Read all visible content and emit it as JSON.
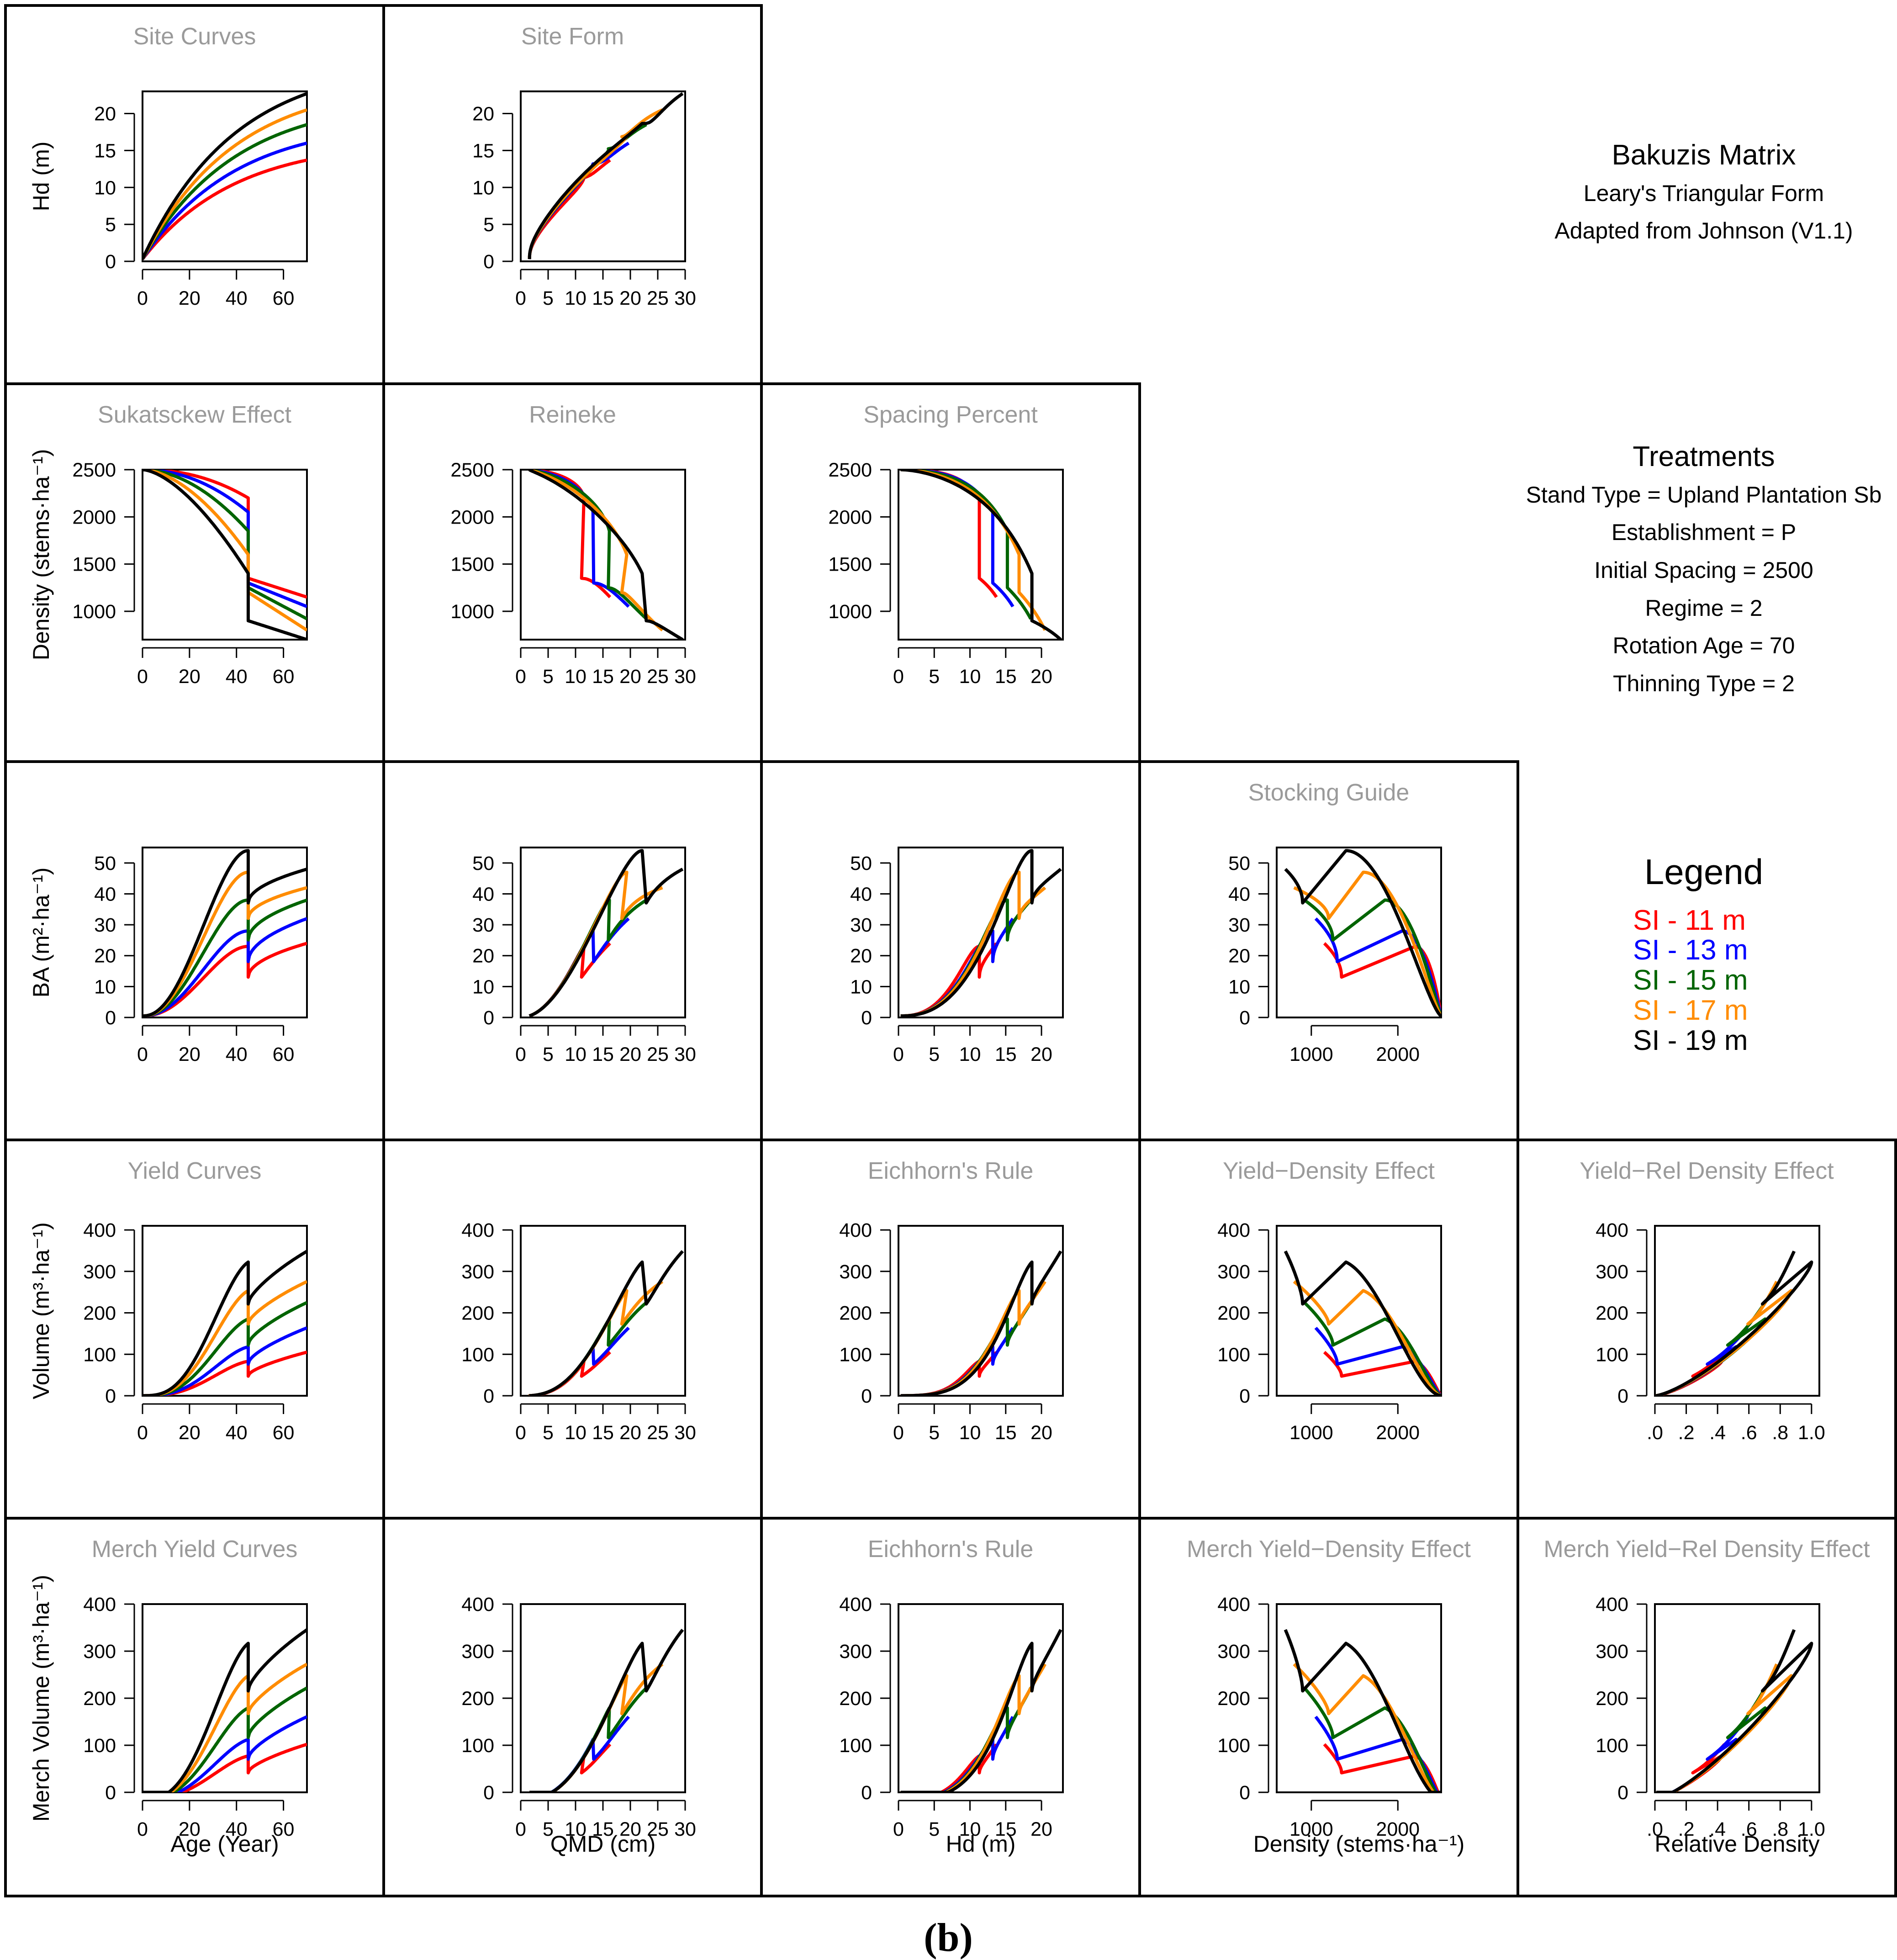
{
  "header": {
    "title": "Bakuzis Matrix",
    "subtitle1": "Leary's Triangular Form",
    "subtitle2": "Adapted from Johnson (V1.1)"
  },
  "treatments": {
    "heading": "Treatments",
    "lines": [
      "Stand Type = Upland Plantation Sb",
      "Establishment = P",
      "Initial Spacing = 2500",
      "Regime = 2",
      "Rotation Age = 70",
      "Thinning Type = 2"
    ]
  },
  "legend": {
    "title": "Legend",
    "items": [
      {
        "label": "SI -  11 m",
        "color": "#ff0000"
      },
      {
        "label": "SI -  13 m",
        "color": "#0000ff"
      },
      {
        "label": "SI -  15 m",
        "color": "#006400"
      },
      {
        "label": "SI -  17 m",
        "color": "#ff8c00"
      },
      {
        "label": "SI -  19 m",
        "color": "#000000"
      }
    ]
  },
  "caption": "(b)",
  "chart_data": [
    {
      "type": "line",
      "title": "Site Curves",
      "row": 0,
      "col": 0,
      "xkind": "age",
      "ykind": "hd",
      "xlim": [
        0,
        70
      ],
      "ylim": [
        0,
        23
      ],
      "xticks": [
        0,
        20,
        40,
        60
      ],
      "yticks": [
        0,
        5,
        10,
        15,
        20
      ],
      "ylabel": "Hd (m)",
      "xlabel": ""
    },
    {
      "type": "line",
      "title": "Site Form",
      "row": 0,
      "col": 1,
      "xkind": "qmd",
      "ykind": "hd",
      "xlim": [
        0,
        30
      ],
      "ylim": [
        0,
        23
      ],
      "xticks": [
        0,
        5,
        10,
        15,
        20,
        25,
        30
      ],
      "yticks": [
        0,
        5,
        10,
        15,
        20
      ],
      "ylabel": "",
      "xlabel": ""
    },
    {
      "type": "line",
      "title": "Sukatsckew Effect",
      "row": 1,
      "col": 0,
      "xkind": "age",
      "ykind": "dens",
      "xlim": [
        0,
        70
      ],
      "ylim": [
        700,
        2500
      ],
      "xticks": [
        0,
        20,
        40,
        60
      ],
      "yticks": [
        1000,
        1500,
        2000,
        2500
      ],
      "ylabel": "Density (stems·ha⁻¹)",
      "xlabel": ""
    },
    {
      "type": "line",
      "title": "Reineke",
      "row": 1,
      "col": 1,
      "xkind": "qmd",
      "ykind": "dens",
      "xlim": [
        0,
        30
      ],
      "ylim": [
        700,
        2500
      ],
      "xticks": [
        0,
        5,
        10,
        15,
        20,
        25,
        30
      ],
      "yticks": [
        1000,
        1500,
        2000,
        2500
      ],
      "ylabel": "",
      "xlabel": ""
    },
    {
      "type": "line",
      "title": "Spacing Percent",
      "row": 1,
      "col": 2,
      "xkind": "hd",
      "ykind": "dens",
      "xlim": [
        0,
        23
      ],
      "ylim": [
        700,
        2500
      ],
      "xticks": [
        0,
        5,
        10,
        15,
        20
      ],
      "yticks": [
        1000,
        1500,
        2000,
        2500
      ],
      "ylabel": "",
      "xlabel": ""
    },
    {
      "type": "line",
      "title": "",
      "row": 2,
      "col": 0,
      "xkind": "age",
      "ykind": "ba",
      "xlim": [
        0,
        70
      ],
      "ylim": [
        0,
        55
      ],
      "xticks": [
        0,
        20,
        40,
        60
      ],
      "yticks": [
        0,
        10,
        20,
        30,
        40,
        50
      ],
      "ylabel": "BA (m²·ha⁻¹)",
      "xlabel": ""
    },
    {
      "type": "line",
      "title": "",
      "row": 2,
      "col": 1,
      "xkind": "qmd",
      "ykind": "ba",
      "xlim": [
        0,
        30
      ],
      "ylim": [
        0,
        55
      ],
      "xticks": [
        0,
        5,
        10,
        15,
        20,
        25,
        30
      ],
      "yticks": [
        0,
        10,
        20,
        30,
        40,
        50
      ],
      "ylabel": "",
      "xlabel": ""
    },
    {
      "type": "line",
      "title": "",
      "row": 2,
      "col": 2,
      "xkind": "hd",
      "ykind": "ba",
      "xlim": [
        0,
        23
      ],
      "ylim": [
        0,
        55
      ],
      "xticks": [
        0,
        5,
        10,
        15,
        20
      ],
      "yticks": [
        0,
        10,
        20,
        30,
        40,
        50
      ],
      "ylabel": "",
      "xlabel": ""
    },
    {
      "type": "line",
      "title": "Stocking Guide",
      "row": 2,
      "col": 3,
      "xkind": "dens",
      "ykind": "ba",
      "xlim": [
        600,
        2500
      ],
      "ylim": [
        0,
        55
      ],
      "xticks": [
        1000,
        2000
      ],
      "yticks": [
        0,
        10,
        20,
        30,
        40,
        50
      ],
      "ylabel": "",
      "xlabel": ""
    },
    {
      "type": "line",
      "title": "Yield Curves",
      "row": 3,
      "col": 0,
      "xkind": "age",
      "ykind": "vol",
      "xlim": [
        0,
        70
      ],
      "ylim": [
        0,
        410
      ],
      "xticks": [
        0,
        20,
        40,
        60
      ],
      "yticks": [
        0,
        100,
        200,
        300,
        400
      ],
      "ylabel": "Volume (m³·ha⁻¹)",
      "xlabel": ""
    },
    {
      "type": "line",
      "title": "",
      "row": 3,
      "col": 1,
      "xkind": "qmd",
      "ykind": "vol",
      "xlim": [
        0,
        30
      ],
      "ylim": [
        0,
        410
      ],
      "xticks": [
        0,
        5,
        10,
        15,
        20,
        25,
        30
      ],
      "yticks": [
        0,
        100,
        200,
        300,
        400
      ],
      "ylabel": "",
      "xlabel": ""
    },
    {
      "type": "line",
      "title": "Eichhorn's Rule",
      "row": 3,
      "col": 2,
      "xkind": "hd",
      "ykind": "vol",
      "xlim": [
        0,
        23
      ],
      "ylim": [
        0,
        410
      ],
      "xticks": [
        0,
        5,
        10,
        15,
        20
      ],
      "yticks": [
        0,
        100,
        200,
        300,
        400
      ],
      "ylabel": "",
      "xlabel": ""
    },
    {
      "type": "line",
      "title": "Yield−Density Effect",
      "row": 3,
      "col": 3,
      "xkind": "dens",
      "ykind": "vol",
      "xlim": [
        600,
        2500
      ],
      "ylim": [
        0,
        410
      ],
      "xticks": [
        1000,
        2000
      ],
      "yticks": [
        0,
        100,
        200,
        300,
        400
      ],
      "ylabel": "",
      "xlabel": ""
    },
    {
      "type": "line",
      "title": "Yield−Rel Density Effect",
      "row": 3,
      "col": 4,
      "xkind": "rd",
      "ykind": "vol",
      "xlim": [
        0,
        1.05
      ],
      "ylim": [
        0,
        410
      ],
      "xticks": [
        0,
        0.2,
        0.4,
        0.6,
        0.8,
        1.0
      ],
      "xticklabels": [
        ".0",
        ".2",
        ".4",
        ".6",
        ".8",
        "1.0"
      ],
      "yticks": [
        0,
        100,
        200,
        300,
        400
      ],
      "ylabel": "",
      "xlabel": ""
    },
    {
      "type": "line",
      "title": "Merch Yield Curves",
      "row": 4,
      "col": 0,
      "xkind": "age",
      "ykind": "mvol",
      "xlim": [
        0,
        70
      ],
      "ylim": [
        0,
        400
      ],
      "xticks": [
        0,
        20,
        40,
        60
      ],
      "yticks": [
        0,
        100,
        200,
        300,
        400
      ],
      "ylabel": "Merch Volume (m³·ha⁻¹)",
      "xlabel": "Age (Year)"
    },
    {
      "type": "line",
      "title": "",
      "row": 4,
      "col": 1,
      "xkind": "qmd",
      "ykind": "mvol",
      "xlim": [
        0,
        30
      ],
      "ylim": [
        0,
        400
      ],
      "xticks": [
        0,
        5,
        10,
        15,
        20,
        25,
        30
      ],
      "yticks": [
        0,
        100,
        200,
        300,
        400
      ],
      "ylabel": "",
      "xlabel": "QMD (cm)"
    },
    {
      "type": "line",
      "title": "Eichhorn's Rule",
      "row": 4,
      "col": 2,
      "xkind": "hd",
      "ykind": "mvol",
      "xlim": [
        0,
        23
      ],
      "ylim": [
        0,
        400
      ],
      "xticks": [
        0,
        5,
        10,
        15,
        20
      ],
      "yticks": [
        0,
        100,
        200,
        300,
        400
      ],
      "ylabel": "",
      "xlabel": "Hd (m)"
    },
    {
      "type": "line",
      "title": "Merch Yield−Density Effect",
      "row": 4,
      "col": 3,
      "xkind": "dens",
      "ykind": "mvol",
      "xlim": [
        600,
        2500
      ],
      "ylim": [
        0,
        400
      ],
      "xticks": [
        1000,
        2000
      ],
      "yticks": [
        0,
        100,
        200,
        300,
        400
      ],
      "ylabel": "",
      "xlabel": "Density (stems·ha⁻¹)"
    },
    {
      "type": "line",
      "title": "Merch Yield−Rel Density Effect",
      "row": 4,
      "col": 4,
      "xkind": "rd",
      "ykind": "mvol",
      "xlim": [
        0,
        1.05
      ],
      "ylim": [
        0,
        400
      ],
      "xticks": [
        0,
        0.2,
        0.4,
        0.6,
        0.8,
        1.0
      ],
      "xticklabels": [
        ".0",
        ".2",
        ".4",
        ".6",
        ".8",
        "1.0"
      ],
      "yticks": [
        0,
        100,
        200,
        300,
        400
      ],
      "ylabel": "",
      "xlabel": "Relative Density"
    }
  ],
  "series_model": {
    "site_indices": [
      11,
      13,
      15,
      17,
      19
    ],
    "thin_age": 45,
    "age_range": [
      0,
      70
    ],
    "initial_density": 2500,
    "pre_thin_density_at_45": [
      2200,
      2050,
      1850,
      1600,
      1400
    ],
    "post_thin_density": [
      1350,
      1300,
      1250,
      1200,
      900
    ],
    "final_density": [
      1150,
      1050,
      920,
      800,
      700
    ],
    "peak_ba": [
      23,
      28,
      38,
      47,
      54
    ],
    "post_thin_ba": [
      13,
      18,
      25,
      32,
      37
    ],
    "final_ba": [
      24,
      32,
      38,
      42,
      48
    ],
    "hd_at_70": [
      13.7,
      16.0,
      18.5,
      20.5,
      22.7
    ],
    "qmd_at_70": [
      17,
      20,
      22,
      25,
      29
    ]
  }
}
